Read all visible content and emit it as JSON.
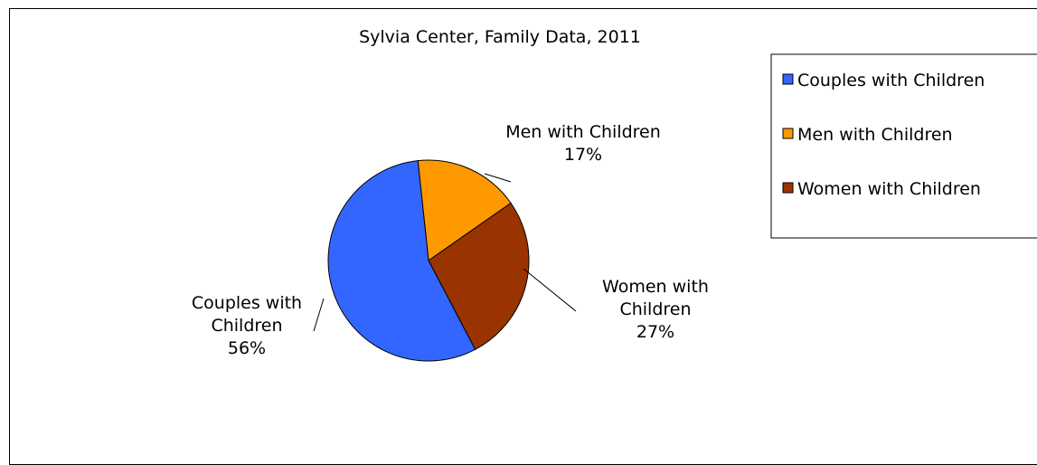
{
  "chart_data": {
    "type": "pie",
    "title": "Sylvia Center, Family Data, 2011",
    "legend_position": "top-right",
    "slices": [
      {
        "label": "Couples with Children",
        "label_lines": [
          "Couples with",
          "Children"
        ],
        "value": 56,
        "percent_label": "56%",
        "color": "#3366FF"
      },
      {
        "label": "Men with Children",
        "label_lines": [
          "Men with Children"
        ],
        "value": 17,
        "percent_label": "17%",
        "color": "#FF9900"
      },
      {
        "label": "Women with Children",
        "label_lines": [
          "Women with",
          "Children"
        ],
        "value": 27,
        "percent_label": "27%",
        "color": "#993300"
      }
    ],
    "legend": [
      {
        "label": "Couples with Children",
        "color": "#3366FF"
      },
      {
        "label": "Men with Children",
        "color": "#FF9900"
      },
      {
        "label": "Women with Children",
        "color": "#993300"
      }
    ]
  }
}
